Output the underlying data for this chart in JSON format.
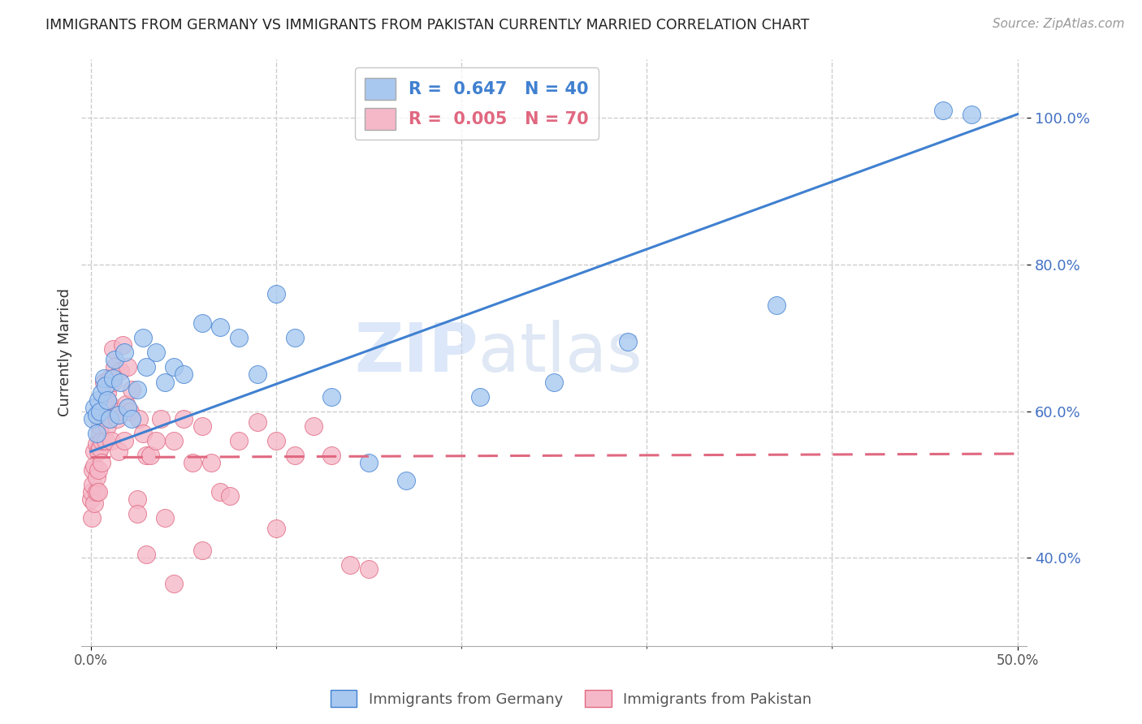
{
  "title": "IMMIGRANTS FROM GERMANY VS IMMIGRANTS FROM PAKISTAN CURRENTLY MARRIED CORRELATION CHART",
  "source": "Source: ZipAtlas.com",
  "ylabel": "Currently Married",
  "legend_label_blue": "Immigrants from Germany",
  "legend_label_pink": "Immigrants from Pakistan",
  "R_blue": 0.647,
  "N_blue": 40,
  "R_pink": 0.005,
  "N_pink": 70,
  "xlim": [
    -0.005,
    0.505
  ],
  "ylim": [
    0.28,
    1.08
  ],
  "ytick_positions": [
    0.4,
    0.6,
    0.8,
    1.0
  ],
  "ytick_labels": [
    "40.0%",
    "60.0%",
    "80.0%",
    "100.0%"
  ],
  "color_blue": "#A8C8F0",
  "color_pink": "#F5B8C8",
  "line_color_blue": "#4080D0",
  "line_color_pink": "#E06880",
  "watermark_zip": "ZIP",
  "watermark_atlas": "atlas",
  "germany_x": [
    0.001,
    0.002,
    0.003,
    0.003,
    0.004,
    0.005,
    0.006,
    0.007,
    0.008,
    0.009,
    0.01,
    0.012,
    0.013,
    0.015,
    0.016,
    0.018,
    0.02,
    0.022,
    0.025,
    0.028,
    0.03,
    0.035,
    0.04,
    0.045,
    0.05,
    0.06,
    0.07,
    0.08,
    0.09,
    0.1,
    0.11,
    0.13,
    0.15,
    0.17,
    0.21,
    0.25,
    0.29,
    0.37,
    0.46,
    0.475
  ],
  "germany_y": [
    0.59,
    0.605,
    0.57,
    0.595,
    0.615,
    0.6,
    0.625,
    0.645,
    0.635,
    0.615,
    0.59,
    0.645,
    0.67,
    0.595,
    0.64,
    0.68,
    0.605,
    0.59,
    0.63,
    0.7,
    0.66,
    0.68,
    0.64,
    0.66,
    0.65,
    0.72,
    0.715,
    0.7,
    0.65,
    0.76,
    0.7,
    0.62,
    0.53,
    0.505,
    0.62,
    0.64,
    0.695,
    0.745,
    1.01,
    1.005
  ],
  "pakistan_x": [
    0.0003,
    0.0005,
    0.0007,
    0.001,
    0.001,
    0.002,
    0.002,
    0.002,
    0.003,
    0.003,
    0.003,
    0.004,
    0.004,
    0.004,
    0.005,
    0.005,
    0.005,
    0.006,
    0.006,
    0.006,
    0.007,
    0.007,
    0.008,
    0.008,
    0.009,
    0.009,
    0.01,
    0.01,
    0.011,
    0.012,
    0.012,
    0.013,
    0.014,
    0.015,
    0.015,
    0.016,
    0.017,
    0.018,
    0.019,
    0.02,
    0.021,
    0.022,
    0.025,
    0.026,
    0.028,
    0.03,
    0.032,
    0.035,
    0.038,
    0.04,
    0.045,
    0.05,
    0.055,
    0.06,
    0.065,
    0.07,
    0.075,
    0.08,
    0.09,
    0.1,
    0.11,
    0.12,
    0.13,
    0.14,
    0.15,
    0.1,
    0.06,
    0.045,
    0.03,
    0.025
  ],
  "pakistan_y": [
    0.48,
    0.455,
    0.49,
    0.52,
    0.5,
    0.475,
    0.545,
    0.525,
    0.555,
    0.49,
    0.51,
    0.545,
    0.52,
    0.49,
    0.57,
    0.58,
    0.55,
    0.6,
    0.56,
    0.53,
    0.64,
    0.59,
    0.61,
    0.56,
    0.625,
    0.58,
    0.645,
    0.61,
    0.56,
    0.685,
    0.64,
    0.66,
    0.59,
    0.6,
    0.545,
    0.655,
    0.69,
    0.56,
    0.61,
    0.66,
    0.6,
    0.63,
    0.48,
    0.59,
    0.57,
    0.54,
    0.54,
    0.56,
    0.59,
    0.455,
    0.56,
    0.59,
    0.53,
    0.58,
    0.53,
    0.49,
    0.485,
    0.56,
    0.585,
    0.56,
    0.54,
    0.58,
    0.54,
    0.39,
    0.385,
    0.44,
    0.41,
    0.365,
    0.405,
    0.46
  ],
  "blue_line_x": [
    0.0,
    0.5
  ],
  "blue_line_y": [
    0.545,
    1.005
  ],
  "pink_line_x": [
    0.0,
    0.5
  ],
  "pink_line_y": [
    0.537,
    0.542
  ]
}
